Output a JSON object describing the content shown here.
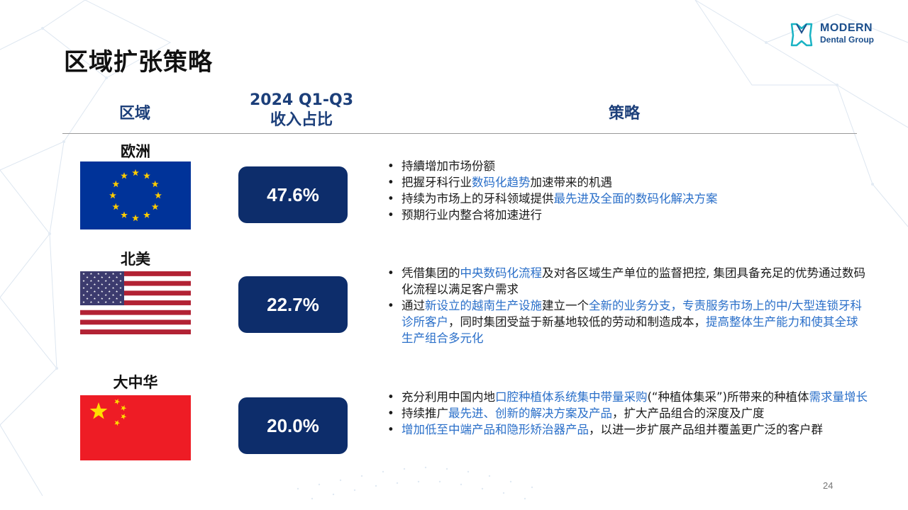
{
  "title": "区域扩张策略",
  "logo": {
    "line1": "MODERN",
    "line2": "Dental Group"
  },
  "headers": {
    "region": "区域",
    "revenue_line1": "2024 Q1-Q3",
    "revenue_line2": "收入占比",
    "strategy": "策略"
  },
  "regions": [
    {
      "name": "欧洲",
      "flag": "eu-flag-icon",
      "revenue_share": "47.6%",
      "bullets": [
        [
          {
            "t": "持續增加市场份额"
          }
        ],
        [
          {
            "t": "把握牙科行业"
          },
          {
            "t": "数码化趋势",
            "hl": true
          },
          {
            "t": "加速带来的机遇"
          }
        ],
        [
          {
            "t": "持续为市场上的牙科领域提供"
          },
          {
            "t": "最先进及全面的数码化解决方案",
            "hl": true
          }
        ],
        [
          {
            "t": "预期行业内整合将加速进行"
          }
        ]
      ]
    },
    {
      "name": "北美",
      "flag": "us-flag-icon",
      "revenue_share": "22.7%",
      "bullets": [
        [
          {
            "t": "凭借集团的"
          },
          {
            "t": "中央数码化流程",
            "hl": true
          },
          {
            "t": "及对各区域生产单位的监督把控, 集团具备充足的优势通过数码化流程以满足客户需求"
          }
        ],
        [
          {
            "t": "通过"
          },
          {
            "t": "新设立的越南生产设施",
            "hl": true
          },
          {
            "t": "建立一个"
          },
          {
            "t": "全新的业务分支，专责服务市场上的中/大型连锁牙科诊所客户",
            "hl": true
          },
          {
            "t": "，同时集团受益于新基地较低的劳动和制造成本，"
          },
          {
            "t": "提高整体生产能力和使其全球生产组合多元化",
            "hl": true
          }
        ]
      ]
    },
    {
      "name": "大中华",
      "flag": "cn-flag-icon",
      "revenue_share": "20.0%",
      "bullets": [
        [
          {
            "t": "充分利用中国内地"
          },
          {
            "t": "口腔种植体系统集中带量采购",
            "hl": true
          },
          {
            "t": "(“种植体集采”)所带来的种植体"
          },
          {
            "t": "需求量增长",
            "hl": true
          }
        ],
        [
          {
            "t": "持续推广"
          },
          {
            "t": "最先进、创新的解决方案及产品",
            "hl": true
          },
          {
            "t": "，扩大产品组合的深度及广度"
          }
        ],
        [
          {
            "t": "增加低至中端产品和隐形矫治器产品",
            "hl": true
          },
          {
            "t": "，以进一步扩展产品组并覆盖更广泛的客户群"
          }
        ]
      ]
    }
  ],
  "page_number": "24",
  "colors": {
    "accent": "#0d2d6b",
    "highlight": "#2a6fc9",
    "header": "#1c3f7a"
  }
}
